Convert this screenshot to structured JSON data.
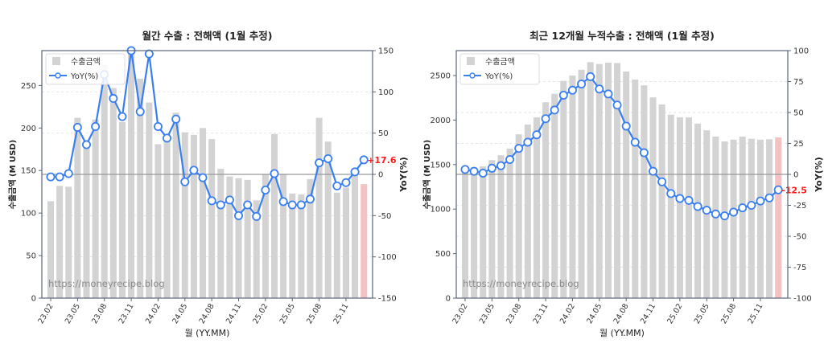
{
  "chart_data": [
    {
      "type": "bar+line",
      "title": "월간 수출 : 전해액 (1월 추정)",
      "xlabel": "월 (YY.MM)",
      "ylabel": "수출금액 (M USD)",
      "y2label": "YoY(%)",
      "ylim": [
        0,
        291
      ],
      "y2lim": [
        -150,
        150
      ],
      "yticks": [
        0,
        50,
        100,
        150,
        200,
        250
      ],
      "y2ticks": [
        -150,
        -100,
        -50,
        0,
        50,
        100,
        150
      ],
      "xtick_labels": [
        "23.02",
        "23.05",
        "23.08",
        "23.11",
        "24.02",
        "24.05",
        "24.08",
        "24.11",
        "25.02",
        "25.05",
        "25.08",
        "25.11"
      ],
      "categories": [
        "23.02",
        "23.03",
        "23.04",
        "23.05",
        "23.06",
        "23.07",
        "23.08",
        "23.09",
        "23.10",
        "23.11",
        "23.12",
        "24.01",
        "24.02",
        "24.03",
        "24.04",
        "24.05",
        "24.06",
        "24.07",
        "24.08",
        "24.09",
        "24.10",
        "24.11",
        "24.12",
        "25.01",
        "25.02",
        "25.03",
        "25.04",
        "25.05",
        "25.06",
        "25.07",
        "25.08",
        "25.09",
        "25.10",
        "25.11",
        "25.12",
        "26.01"
      ],
      "legend": [
        "수출금액",
        "YoY(%)"
      ],
      "legend_position": "upper left",
      "grid": "horizontal dashed",
      "watermark": "https://moneyrecipe.blog",
      "last_label": "+17.6",
      "series": [
        {
          "name": "수출금액",
          "kind": "bar",
          "values": [
            114,
            132,
            131,
            212,
            180,
            210,
            274,
            247,
            207,
            288,
            258,
            230,
            181,
            190,
            218,
            195,
            192,
            200,
            187,
            152,
            143,
            141,
            139,
            115,
            146,
            193,
            146,
            123,
            122,
            140,
            212,
            184,
            124,
            130,
            145,
            134
          ]
        },
        {
          "name": "YoY(%)",
          "kind": "line",
          "values": [
            -3,
            -3,
            1,
            57,
            36,
            58,
            121,
            92,
            70,
            150,
            76,
            146,
            58,
            44,
            67,
            -9,
            5,
            -4,
            -32,
            -37,
            -31,
            -50,
            -37,
            -51,
            -19,
            1,
            -33,
            -37,
            -37,
            -30,
            14,
            19,
            -14,
            -10,
            3,
            17.6
          ]
        }
      ]
    },
    {
      "type": "bar+line",
      "title": "최근 12개월 누적수출 : 전해액 (1월 추정)",
      "xlabel": "월 (YY.MM)",
      "ylabel": "수출금액 (M USD)",
      "y2label": "YoY(%)",
      "ylim": [
        0,
        2780
      ],
      "y2lim": [
        -100,
        100
      ],
      "yticks": [
        0,
        500,
        1000,
        1500,
        2000,
        2500
      ],
      "y2ticks": [
        -100,
        -75,
        -50,
        -25,
        0,
        25,
        50,
        75,
        100
      ],
      "xtick_labels": [
        "23.02",
        "23.05",
        "23.08",
        "23.11",
        "24.02",
        "24.05",
        "24.08",
        "24.11",
        "25.02",
        "25.05",
        "25.08",
        "25.11"
      ],
      "categories": [
        "23.02",
        "23.03",
        "23.04",
        "23.05",
        "23.06",
        "23.07",
        "23.08",
        "23.09",
        "23.10",
        "23.11",
        "23.12",
        "24.01",
        "24.02",
        "24.03",
        "24.04",
        "24.05",
        "24.06",
        "24.07",
        "24.08",
        "24.09",
        "24.10",
        "24.11",
        "24.12",
        "25.01",
        "25.02",
        "25.03",
        "25.04",
        "25.05",
        "25.06",
        "25.07",
        "25.08",
        "25.09",
        "25.10",
        "25.11",
        "25.12",
        "26.01"
      ],
      "legend": [
        "수출금액",
        "YoY(%)"
      ],
      "legend_position": "upper left",
      "grid": "horizontal dashed",
      "watermark": "https://moneyrecipe.blog",
      "last_label": "-12.5",
      "series": [
        {
          "name": "수출금액",
          "kind": "bar",
          "values": [
            1480,
            1470,
            1480,
            1550,
            1605,
            1680,
            1840,
            1950,
            2030,
            2200,
            2295,
            2440,
            2500,
            2565,
            2650,
            2630,
            2645,
            2640,
            2545,
            2455,
            2390,
            2255,
            2175,
            2060,
            2030,
            2030,
            1960,
            1885,
            1815,
            1760,
            1780,
            1815,
            1790,
            1780,
            1785,
            1805
          ]
        },
        {
          "name": "YoY(%)",
          "kind": "line",
          "values": [
            4,
            2.5,
            1,
            5,
            7,
            12,
            21,
            26,
            32,
            45,
            52,
            64,
            68,
            73,
            79,
            69,
            65,
            56,
            39,
            26,
            17.5,
            2.5,
            -6,
            -15.5,
            -19.5,
            -21,
            -26,
            -29,
            -32,
            -33.5,
            -30.5,
            -27,
            -25,
            -21.5,
            -19,
            -12.5
          ]
        }
      ]
    }
  ],
  "colors": {
    "bar": "#d3d3d3",
    "bar_highlight": "#f4c2c2",
    "line": "#3a7ff0",
    "marker_fill": "#ffffff",
    "zero_line": "#999999",
    "axis": "#5a6478",
    "grid": "#e6e6e6",
    "label_highlight": "#ff1a1a",
    "watermark": "#8c8c8c"
  }
}
